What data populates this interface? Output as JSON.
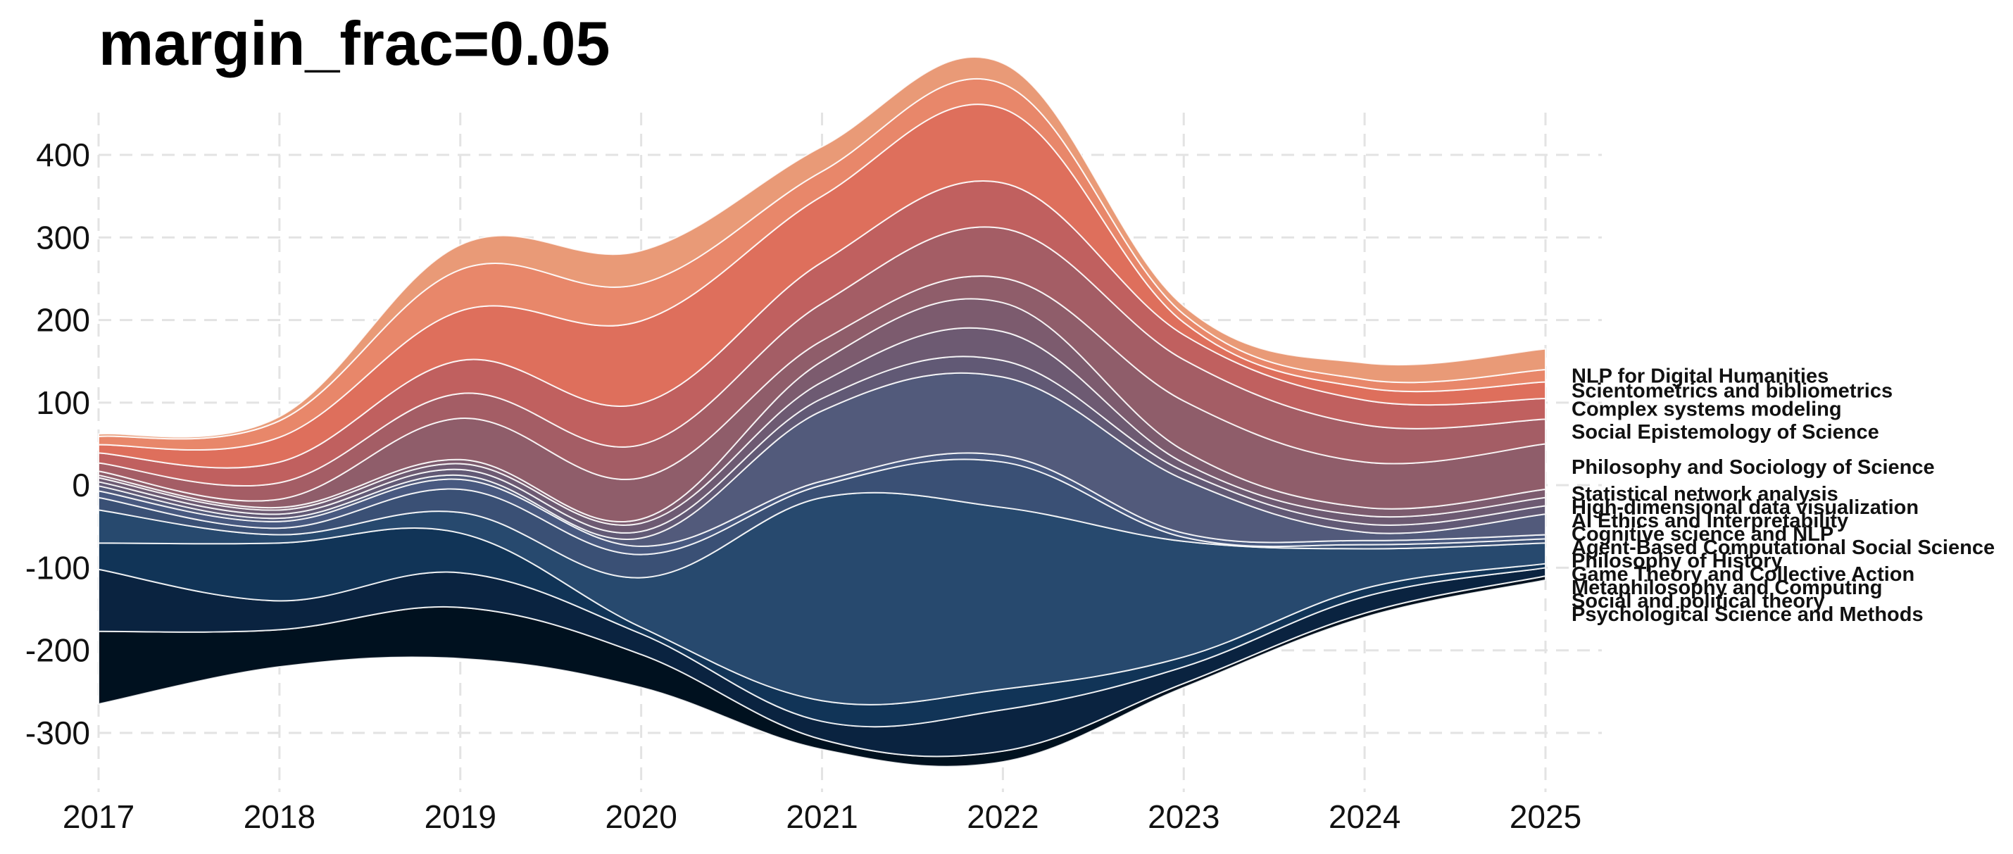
{
  "chart_data": {
    "type": "area",
    "title": "margin_frac=0.05",
    "xlabel": "",
    "ylabel": "",
    "x": [
      2017,
      2018,
      2019,
      2020,
      2021,
      2022,
      2023,
      2024,
      2025
    ],
    "xlim": [
      2017,
      2025.3
    ],
    "ylim": [
      -370,
      450
    ],
    "yticks": [
      400,
      300,
      200,
      100,
      0,
      -100,
      -200,
      -300
    ],
    "grid": true,
    "legend": "labels at right end of streams",
    "baseline": [
      -265,
      -220,
      -210,
      -245,
      -320,
      -335,
      -245,
      -160,
      -115
    ],
    "series": [
      {
        "name": "Psychological Science and Methods",
        "color": "#00111f",
        "values": [
          88,
          45,
          62,
          40,
          12,
          13,
          5,
          5,
          5
        ]
      },
      {
        "name": "Social and political theory",
        "color": "#0a2340",
        "values": [
          75,
          35,
          42,
          25,
          22,
          50,
          20,
          20,
          10
        ]
      },
      {
        "name": "Metaphilosophy and Computing",
        "color": "#113457",
        "values": [
          32,
          70,
          48,
          8,
          25,
          25,
          12,
          10,
          5
        ]
      },
      {
        "name": "Game Theory and Collective Action",
        "color": "#27496e",
        "values": [
          40,
          10,
          25,
          60,
          246,
          220,
          140,
          48,
          25
        ]
      },
      {
        "name": "Philosophy of History",
        "color": "#3a5075",
        "values": [
          15,
          8,
          28,
          28,
          15,
          55,
          5,
          5,
          5
        ]
      },
      {
        "name": "Agent-Based Computational Social Science",
        "color": "#485980",
        "values": [
          8,
          8,
          12,
          10,
          5,
          8,
          5,
          5,
          5
        ]
      },
      {
        "name": "Cognitive science and NLP",
        "color": "#525a7b",
        "values": [
          6,
          4,
          5,
          10,
          85,
          95,
          65,
          10,
          25
        ]
      },
      {
        "name": "AI Ethics and Interpretability",
        "color": "#615975",
        "values": [
          5,
          5,
          7,
          8,
          15,
          20,
          10,
          10,
          10
        ]
      },
      {
        "name": "High-dimensional data visualization",
        "color": "#6d5a72",
        "values": [
          5,
          5,
          7,
          10,
          20,
          35,
          10,
          10,
          10
        ]
      },
      {
        "name": "Statistical network analysis",
        "color": "#7c5b6e",
        "values": [
          3,
          3,
          5,
          5,
          25,
          35,
          15,
          10,
          10
        ]
      },
      {
        "name": "Philosophy and Sociology of Science",
        "color": "#8f5d6a",
        "values": [
          5,
          10,
          50,
          50,
          25,
          30,
          60,
          55,
          55
        ]
      },
      {
        "name": "Social Epistemology of Science",
        "color": "#a45d65",
        "values": [
          10,
          20,
          30,
          40,
          45,
          60,
          50,
          45,
          30
        ]
      },
      {
        "name": "Complex systems modeling",
        "color": "#c0605f",
        "values": [
          12,
          25,
          40,
          50,
          50,
          55,
          30,
          30,
          25
        ]
      },
      {
        "name": "Scientometrics and bibliometrics",
        "color": "#de6f5c",
        "values": [
          10,
          30,
          60,
          100,
          80,
          90,
          15,
          15,
          20
        ]
      },
      {
        "name": "NLP for Digital Humanities",
        "color": "#e8876a",
        "values": [
          10,
          20,
          50,
          45,
          30,
          30,
          10,
          10,
          15
        ]
      },
      {
        "name": "",
        "color": "#e99a77",
        "values": [
          3,
          5,
          30,
          40,
          30,
          25,
          10,
          20,
          25
        ]
      }
    ]
  }
}
